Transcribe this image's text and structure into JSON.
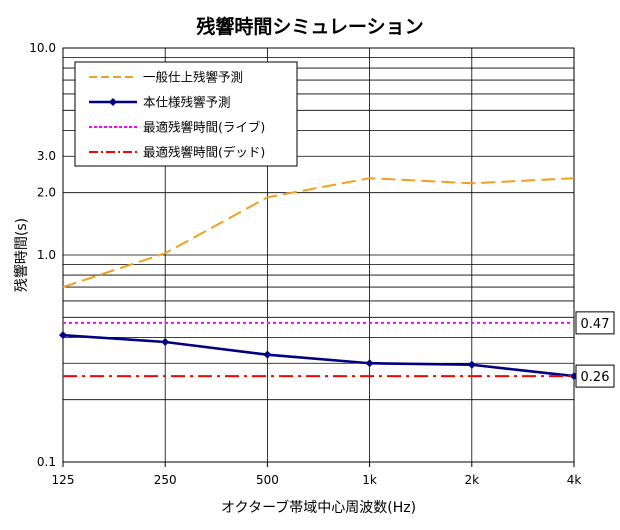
{
  "chart_data": {
    "type": "line",
    "title": "残響時間シミュレーション",
    "xlabel": "オクターブ帯域中心周波数(Hz)",
    "ylabel": "残響時間(s)",
    "x_scale": "log",
    "y_scale": "log",
    "categories": [
      "125",
      "250",
      "500",
      "1k",
      "2k",
      "4k"
    ],
    "x": [
      125,
      250,
      500,
      1000,
      2000,
      4000
    ],
    "ylim": [
      0.1,
      10.0
    ],
    "y_tick_labels": [
      "10.0",
      "3.0",
      "2.0",
      "1.0",
      "0.1"
    ],
    "y_ticks": [
      10.0,
      3.0,
      2.0,
      1.0,
      0.1
    ],
    "grid": true,
    "legend_position": "top-left",
    "series": [
      {
        "name": "一般仕上残響予測",
        "values": [
          0.7,
          1.02,
          1.9,
          2.35,
          2.22,
          2.35
        ],
        "color": "#f0a020",
        "style": "dash",
        "marker": "none"
      },
      {
        "name": "本仕様残響予測",
        "values": [
          0.41,
          0.38,
          0.33,
          0.3,
          0.295,
          0.26
        ],
        "color": "#000080",
        "style": "solid",
        "marker": "diamond"
      },
      {
        "name": "最適残響時間(ライブ)",
        "values": [
          0.47,
          0.47,
          0.47,
          0.47,
          0.47,
          0.47
        ],
        "color": "#ff00ff",
        "style": "dot",
        "marker": "none"
      },
      {
        "name": "最適残響時間(デッド)",
        "values": [
          0.26,
          0.26,
          0.26,
          0.26,
          0.26,
          0.26
        ],
        "color": "#ff0000",
        "style": "dashdot",
        "marker": "none"
      }
    ],
    "annotations": [
      {
        "text": "0.47",
        "value": 0.47
      },
      {
        "text": "0.26",
        "value": 0.26
      }
    ]
  }
}
